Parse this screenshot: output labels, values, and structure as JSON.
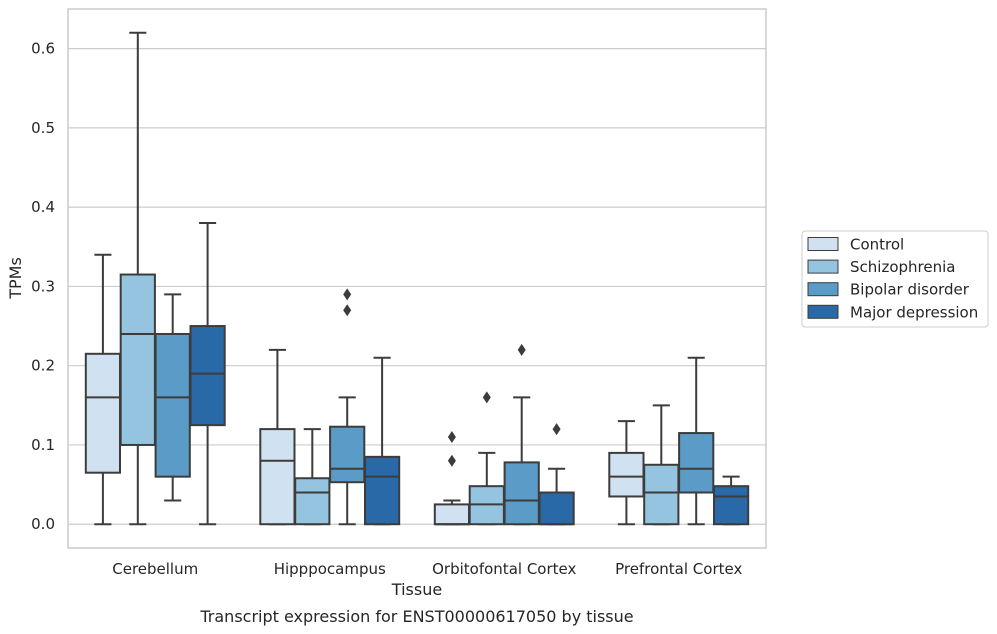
{
  "chart_data": {
    "type": "box",
    "xlabel": "Tissue",
    "ylabel": "TPMs",
    "caption": "Transcript expression for ENST00000617050 by tissue",
    "ylim": [
      -0.03,
      0.65
    ],
    "yticks": [
      0.0,
      0.1,
      0.2,
      0.3,
      0.4,
      0.5,
      0.6
    ],
    "ytick_labels": [
      "0.0",
      "0.1",
      "0.2",
      "0.3",
      "0.4",
      "0.5",
      "0.6"
    ],
    "grid": "horizontal",
    "legend_position": "right",
    "categories": [
      "Cerebellum",
      "Hipppocampus",
      "Orbitofontal Cortex",
      "Prefrontal Cortex"
    ],
    "series": [
      {
        "name": "Control",
        "color": "#d0e1f2",
        "boxes": [
          {
            "whislo": 0.0,
            "q1": 0.065,
            "med": 0.16,
            "q3": 0.215,
            "whishi": 0.34,
            "fliers": []
          },
          {
            "whislo": 0.0,
            "q1": 0.0,
            "med": 0.08,
            "q3": 0.12,
            "whishi": 0.22,
            "fliers": []
          },
          {
            "whislo": 0.0,
            "q1": 0.0,
            "med": 0.0,
            "q3": 0.025,
            "whishi": 0.03,
            "fliers": [
              0.08,
              0.11
            ]
          },
          {
            "whislo": 0.0,
            "q1": 0.035,
            "med": 0.06,
            "q3": 0.09,
            "whishi": 0.13,
            "fliers": []
          }
        ]
      },
      {
        "name": "Schizophrenia",
        "color": "#94c4df",
        "boxes": [
          {
            "whislo": 0.0,
            "q1": 0.1,
            "med": 0.24,
            "q3": 0.315,
            "whishi": 0.62,
            "fliers": []
          },
          {
            "whislo": 0.0,
            "q1": 0.0,
            "med": 0.04,
            "q3": 0.058,
            "whishi": 0.12,
            "fliers": []
          },
          {
            "whislo": 0.0,
            "q1": 0.0,
            "med": 0.025,
            "q3": 0.048,
            "whishi": 0.09,
            "fliers": [
              0.16
            ]
          },
          {
            "whislo": 0.0,
            "q1": 0.0,
            "med": 0.04,
            "q3": 0.075,
            "whishi": 0.15,
            "fliers": []
          }
        ]
      },
      {
        "name": "Bipolar disorder",
        "color": "#5a9bc7",
        "boxes": [
          {
            "whislo": 0.03,
            "q1": 0.06,
            "med": 0.16,
            "q3": 0.24,
            "whishi": 0.29,
            "fliers": []
          },
          {
            "whislo": 0.0,
            "q1": 0.053,
            "med": 0.07,
            "q3": 0.123,
            "whishi": 0.16,
            "fliers": [
              0.27,
              0.29
            ]
          },
          {
            "whislo": 0.0,
            "q1": 0.0,
            "med": 0.03,
            "q3": 0.078,
            "whishi": 0.16,
            "fliers": [
              0.22
            ]
          },
          {
            "whislo": 0.0,
            "q1": 0.04,
            "med": 0.07,
            "q3": 0.115,
            "whishi": 0.21,
            "fliers": []
          }
        ]
      },
      {
        "name": "Major depression",
        "color": "#2969a8",
        "boxes": [
          {
            "whislo": 0.0,
            "q1": 0.125,
            "med": 0.19,
            "q3": 0.25,
            "whishi": 0.38,
            "fliers": []
          },
          {
            "whislo": 0.0,
            "q1": 0.0,
            "med": 0.06,
            "q3": 0.085,
            "whishi": 0.21,
            "fliers": []
          },
          {
            "whislo": 0.0,
            "q1": 0.0,
            "med": 0.0,
            "q3": 0.04,
            "whishi": 0.07,
            "fliers": [
              0.12
            ]
          },
          {
            "whislo": 0.0,
            "q1": 0.0,
            "med": 0.035,
            "q3": 0.048,
            "whishi": 0.06,
            "fliers": []
          }
        ]
      }
    ]
  }
}
